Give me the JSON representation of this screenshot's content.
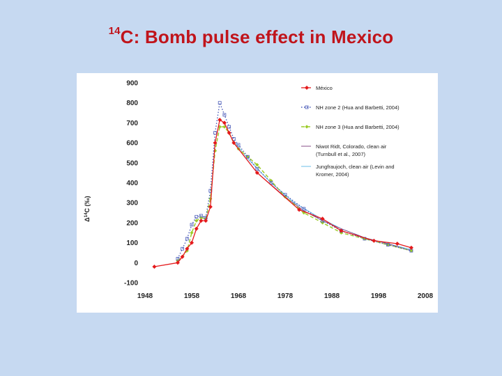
{
  "title": {
    "superscript": "14",
    "text": "C: Bomb pulse effect in Mexico"
  },
  "colors": {
    "background": "#c6d9f1",
    "title": "#c0141b",
    "mexico": "#e41a1c",
    "nh2": "#4a5bb8",
    "nh3": "#9ccc2a",
    "niwot": "#7a3a7a",
    "jungfraujoch": "#5bb8e8"
  },
  "chart_data": {
    "type": "line",
    "ylabel_prefix": "Δ",
    "ylabel_sup": "14",
    "ylabel_rest": "C (‰)",
    "xlim": [
      1948,
      2008
    ],
    "ylim": [
      -100,
      900
    ],
    "xticks": [
      "1948",
      "1958",
      "1968",
      "1978",
      "1988",
      "1998",
      "2008"
    ],
    "yticks": [
      "900",
      "800",
      "700",
      "600",
      "500",
      "400",
      "300",
      "200",
      "100",
      "0",
      "-100"
    ],
    "legend_position": "top-right",
    "series": [
      {
        "key": "mexico",
        "name": "México",
        "style": "solid-marker",
        "x": [
          1950,
          1955,
          1956,
          1957,
          1958,
          1959,
          1960,
          1961,
          1962,
          1963,
          1964,
          1965,
          1966,
          1967,
          1972,
          1981,
          1986,
          1990,
          1997,
          2002,
          2005
        ],
        "y": [
          -20,
          0,
          30,
          70,
          100,
          170,
          210,
          210,
          280,
          600,
          715,
          700,
          650,
          600,
          450,
          265,
          220,
          160,
          110,
          95,
          75
        ]
      },
      {
        "key": "nh2",
        "name": "NH zone 2 (Hua and Barbetti, 2004)",
        "style": "dotted-square",
        "x": [
          1955,
          1956,
          1957,
          1958,
          1959,
          1960,
          1961,
          1962,
          1963,
          1964,
          1965,
          1966,
          1967,
          1968,
          1970,
          1972,
          1975,
          1978,
          1982,
          1986,
          1990,
          1995,
          2000,
          2005
        ],
        "y": [
          20,
          70,
          120,
          190,
          230,
          235,
          225,
          360,
          650,
          800,
          740,
          680,
          620,
          590,
          530,
          470,
          400,
          340,
          270,
          210,
          160,
          120,
          90,
          60
        ]
      },
      {
        "key": "nh3",
        "name": "NH zone 3 (Hua and Barbetti, 2004)",
        "style": "dashed-diamond",
        "x": [
          1955,
          1956,
          1957,
          1958,
          1959,
          1960,
          1961,
          1962,
          1963,
          1964,
          1965,
          1966,
          1967,
          1968,
          1970,
          1972,
          1975,
          1978,
          1982,
          1986,
          1990,
          1995,
          2000,
          2005
        ],
        "y": [
          10,
          30,
          60,
          150,
          210,
          225,
          220,
          320,
          560,
          680,
          680,
          650,
          600,
          570,
          530,
          490,
          410,
          330,
          250,
          200,
          150,
          120,
          90,
          60
        ]
      },
      {
        "key": "niwot",
        "name_lines": [
          "Niwot Ridt, Colorado, clean air",
          "(Turnbull et al., 2007)"
        ],
        "style": "thin-solid",
        "x": [
          1967,
          1972,
          1978,
          1982,
          1986,
          1990,
          1995,
          2000,
          2005
        ],
        "y": [
          600,
          450,
          330,
          260,
          210,
          170,
          125,
          95,
          60
        ]
      },
      {
        "key": "jungfraujoch",
        "name_lines": [
          "Jungfraujoch, clean air (Levin and",
          "Kromer, 2004)"
        ],
        "style": "thin-solid",
        "x": [
          1967,
          1970,
          1975,
          1980,
          1985,
          1990,
          1995,
          2000,
          2005
        ],
        "y": [
          610,
          520,
          400,
          300,
          230,
          170,
          125,
          95,
          65
        ]
      }
    ]
  }
}
